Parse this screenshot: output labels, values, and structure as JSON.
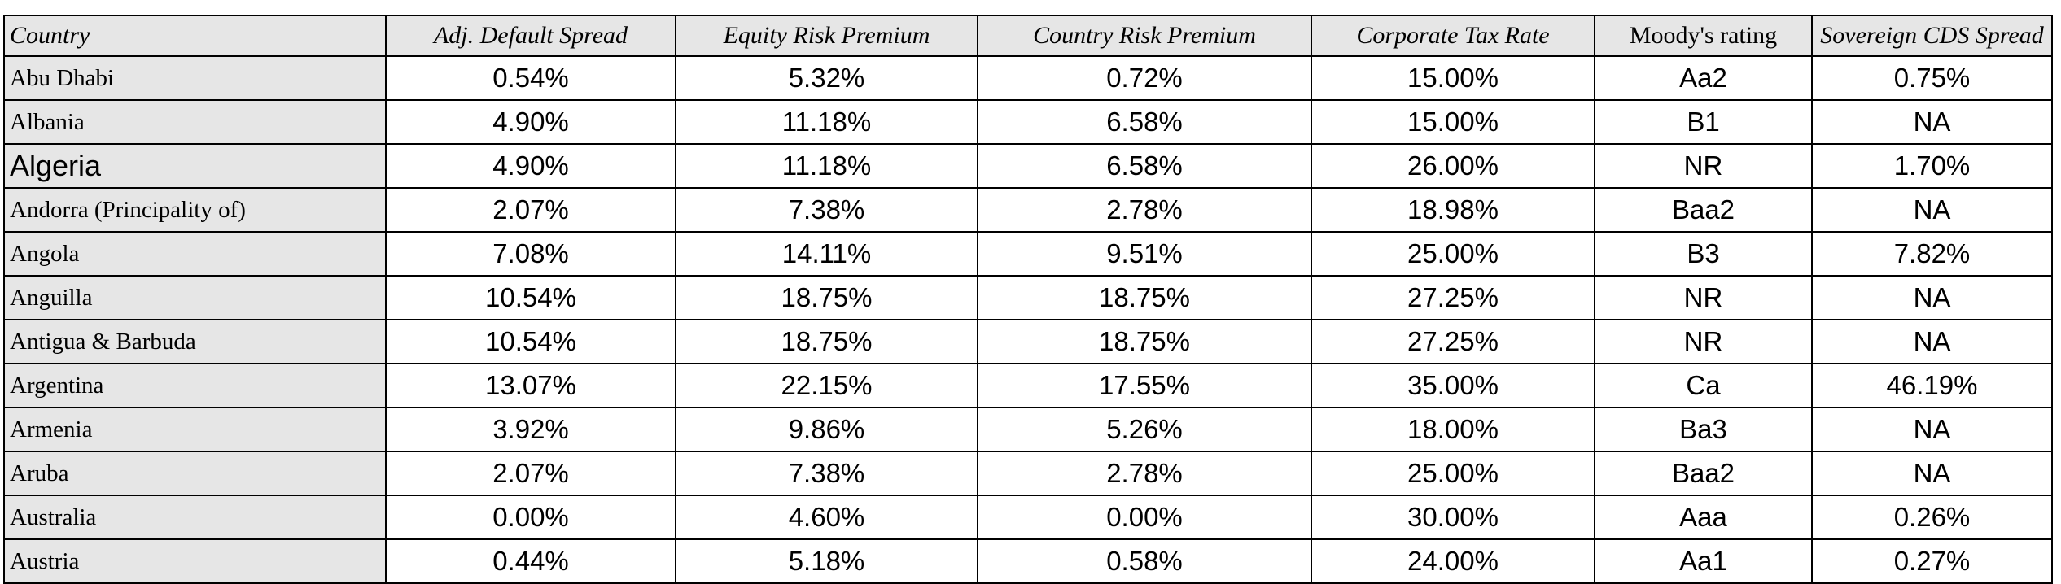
{
  "table": {
    "columns": [
      {
        "label": "Country"
      },
      {
        "label": "Adj. Default Spread"
      },
      {
        "label": "Equity Risk Premium"
      },
      {
        "label": "Country Risk Premium"
      },
      {
        "label": "Corporate Tax Rate"
      },
      {
        "label": "Moody's rating"
      },
      {
        "label": "Sovereign CDS Spread"
      }
    ],
    "rows": [
      {
        "cells": [
          "Abu Dhabi",
          "0.54%",
          "5.32%",
          "0.72%",
          "15.00%",
          "Aa2",
          "0.75%"
        ]
      },
      {
        "cells": [
          "Albania",
          "4.90%",
          "11.18%",
          "6.58%",
          "15.00%",
          "B1",
          "NA"
        ]
      },
      {
        "cells": [
          "Algeria",
          "4.90%",
          "11.18%",
          "6.58%",
          "26.00%",
          "NR",
          "1.70%"
        ],
        "alt_country_style": true
      },
      {
        "cells": [
          "Andorra (Principality of)",
          "2.07%",
          "7.38%",
          "2.78%",
          "18.98%",
          "Baa2",
          "NA"
        ]
      },
      {
        "cells": [
          "Angola",
          "7.08%",
          "14.11%",
          "9.51%",
          "25.00%",
          "B3",
          "7.82%"
        ]
      },
      {
        "cells": [
          "Anguilla",
          "10.54%",
          "18.75%",
          "18.75%",
          "27.25%",
          "NR",
          "NA"
        ]
      },
      {
        "cells": [
          "Antigua & Barbuda",
          "10.54%",
          "18.75%",
          "18.75%",
          "27.25%",
          "NR",
          "NA"
        ]
      },
      {
        "cells": [
          "Argentina",
          "13.07%",
          "22.15%",
          "17.55%",
          "35.00%",
          "Ca",
          "46.19%"
        ]
      },
      {
        "cells": [
          "Armenia",
          "3.92%",
          "9.86%",
          "5.26%",
          "18.00%",
          "Ba3",
          "NA"
        ]
      },
      {
        "cells": [
          "Aruba",
          "2.07%",
          "7.38%",
          "2.78%",
          "25.00%",
          "Baa2",
          "NA"
        ]
      },
      {
        "cells": [
          "Australia",
          "0.00%",
          "4.60%",
          "0.00%",
          "30.00%",
          "Aaa",
          "0.26%"
        ]
      },
      {
        "cells": [
          "Austria",
          "0.44%",
          "5.18%",
          "0.58%",
          "24.00%",
          "Aa1",
          "0.27%"
        ]
      }
    ]
  },
  "colors": {
    "header_background": "#e6e6e6",
    "country_column_background": "#e6e6e6",
    "border": "#000000",
    "text": "#000000",
    "page_background": "#ffffff"
  }
}
